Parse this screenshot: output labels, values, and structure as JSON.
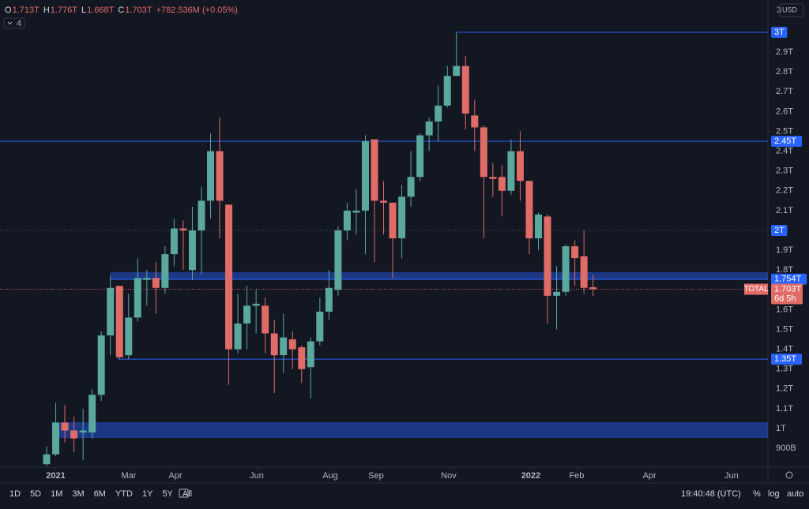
{
  "chart_data": {
    "type": "candlestick",
    "ohlc_header": [
      {
        "key": "O",
        "value": "1.713T"
      },
      {
        "key": "H",
        "value": "1.776T"
      },
      {
        "key": "L",
        "value": "1.668T"
      },
      {
        "key": "C",
        "value": "1.703T"
      }
    ],
    "change": "+782.536M (+0.05%)",
    "indicator_count": "4",
    "currency": "USD",
    "scale_top_label": "3",
    "log": false,
    "series": [
      {
        "name": "TOTAL",
        "up_color": "#5aa89e",
        "down_color": "#e16b67",
        "open": [
          0.82,
          0.87,
          1.03,
          0.99,
          0.98,
          0.98,
          1.17,
          1.47,
          1.72,
          1.37,
          1.56,
          1.75,
          1.76,
          1.71,
          1.88,
          2.01,
          1.8,
          2.0,
          2.15,
          2.4,
          2.13,
          1.4,
          1.53,
          1.62,
          1.62,
          1.48,
          1.37,
          1.45,
          1.41,
          1.31,
          1.44,
          1.59,
          1.7,
          2.0,
          2.09,
          2.1,
          2.46,
          2.15,
          2.14,
          1.96,
          2.17,
          2.27,
          2.48,
          2.55,
          2.63,
          2.78,
          2.83,
          2.58,
          2.52,
          2.27,
          2.27,
          2.2,
          2.4,
          2.25,
          1.96,
          2.07,
          1.67,
          1.69,
          1.92,
          1.87,
          1.713
        ],
        "high": [
          0.91,
          1.13,
          1.12,
          1.06,
          1.1,
          1.2,
          1.49,
          1.77,
          1.72,
          1.68,
          1.86,
          1.8,
          1.84,
          1.92,
          2.06,
          2.05,
          2.12,
          2.22,
          2.49,
          2.57,
          2.13,
          1.68,
          1.72,
          1.7,
          1.66,
          1.55,
          1.58,
          1.49,
          1.42,
          1.46,
          1.66,
          1.8,
          2.02,
          2.14,
          2.21,
          2.48,
          2.46,
          2.25,
          2.14,
          2.23,
          2.4,
          2.49,
          2.57,
          2.73,
          2.83,
          3.0,
          2.88,
          2.66,
          2.53,
          2.34,
          2.33,
          2.46,
          2.5,
          2.25,
          2.09,
          2.08,
          1.82,
          1.93,
          1.95,
          2.0,
          1.776
        ],
        "low": [
          0.81,
          0.86,
          0.93,
          0.88,
          0.84,
          0.95,
          1.14,
          1.37,
          1.35,
          1.35,
          1.54,
          1.62,
          1.58,
          1.68,
          1.82,
          1.8,
          1.75,
          1.78,
          2.06,
          1.96,
          1.22,
          1.38,
          1.4,
          1.48,
          1.38,
          1.18,
          1.28,
          1.3,
          1.23,
          1.15,
          1.42,
          1.55,
          1.67,
          1.95,
          1.98,
          1.88,
          1.84,
          1.98,
          1.76,
          1.86,
          2.12,
          2.25,
          2.4,
          2.45,
          2.62,
          2.78,
          2.51,
          2.4,
          1.96,
          2.17,
          2.07,
          2.18,
          2.15,
          1.88,
          1.9,
          1.53,
          1.5,
          1.67,
          1.72,
          1.68,
          1.668
        ],
        "close": [
          0.87,
          1.03,
          0.99,
          0.95,
          0.99,
          1.17,
          1.47,
          1.71,
          1.36,
          1.56,
          1.76,
          1.76,
          1.71,
          1.88,
          2.01,
          2.0,
          2.0,
          2.15,
          2.4,
          2.15,
          1.4,
          1.53,
          1.62,
          1.63,
          1.48,
          1.37,
          1.46,
          1.4,
          1.3,
          1.44,
          1.59,
          1.71,
          2.0,
          2.1,
          2.1,
          2.45,
          2.15,
          2.14,
          1.96,
          2.17,
          2.27,
          2.48,
          2.55,
          2.63,
          2.78,
          2.83,
          2.59,
          2.52,
          2.27,
          2.26,
          2.2,
          2.4,
          2.25,
          1.96,
          2.08,
          1.67,
          1.69,
          1.92,
          1.86,
          1.71,
          1.703
        ]
      }
    ],
    "last_price": {
      "value": 1.703,
      "label": "1.703T",
      "countdown": "6d 5h"
    },
    "levels": [
      {
        "value": 3,
        "label": "3T"
      },
      {
        "value": 2.45,
        "label": "2.45T"
      },
      {
        "value": 2,
        "label": "2T"
      },
      {
        "value": 1.754,
        "label": "1.754T"
      },
      {
        "value": 1.35,
        "label": "1.35T"
      }
    ],
    "zones": [
      {
        "from": 1.75,
        "to": 1.79
      },
      {
        "from": 0.952,
        "to": 1.032
      }
    ],
    "ylim": [
      0.805,
      3.163
    ],
    "yticks": [
      {
        "value": 0.9,
        "label": "900B"
      },
      {
        "value": 1,
        "label": "1T"
      },
      {
        "value": 1.1,
        "label": "1.1T"
      },
      {
        "value": 1.2,
        "label": "1.2T"
      },
      {
        "value": 1.3,
        "label": "1.3T"
      },
      {
        "value": 1.4,
        "label": "1.4T"
      },
      {
        "value": 1.5,
        "label": "1.5T"
      },
      {
        "value": 1.6,
        "label": "1.6T"
      },
      {
        "value": 1.8,
        "label": "1.8T"
      },
      {
        "value": 1.9,
        "label": "1.9T"
      },
      {
        "value": 2.1,
        "label": "2.1T"
      },
      {
        "value": 2.2,
        "label": "2.2T"
      },
      {
        "value": 2.3,
        "label": "2.3T"
      },
      {
        "value": 2.4,
        "label": "2.4T"
      },
      {
        "value": 2.5,
        "label": "2.5T"
      },
      {
        "value": 2.6,
        "label": "2.6T"
      },
      {
        "value": 2.7,
        "label": "2.7T"
      },
      {
        "value": 2.8,
        "label": "2.8T"
      },
      {
        "value": 2.9,
        "label": "2.9T"
      }
    ],
    "xlim": [
      -5.12,
      79.2
    ],
    "xticks": [
      {
        "value": 1,
        "label": "2021"
      },
      {
        "value": 9.02,
        "label": "Mar"
      },
      {
        "value": 14.14,
        "label": "Apr"
      },
      {
        "value": 23.07,
        "label": "Jun"
      },
      {
        "value": 31.14,
        "label": "Aug"
      },
      {
        "value": 36.17,
        "label": "Sep"
      },
      {
        "value": 44.15,
        "label": "Nov"
      },
      {
        "value": 53.17,
        "label": "2022"
      },
      {
        "value": 58.2,
        "label": "Feb"
      },
      {
        "value": 66.2,
        "label": "Apr"
      },
      {
        "value": 75.2,
        "label": "Jun"
      }
    ],
    "ranges": [
      "1D",
      "5D",
      "1M",
      "3M",
      "6M",
      "YTD",
      "1Y",
      "5Y",
      "All"
    ],
    "clock": "19:40:48 (UTC)",
    "scale_options": [
      "%",
      "log",
      "auto"
    ]
  }
}
